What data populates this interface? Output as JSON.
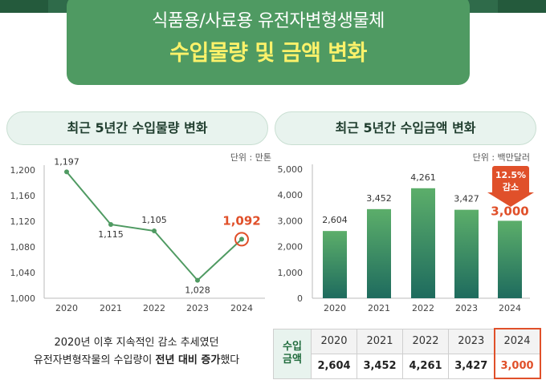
{
  "header": {
    "title_line1": "식품용/사료용 유전자변형생물체",
    "title_line2": "수입물량 및 금액 변화"
  },
  "left_panel": {
    "title": "최근 5년간 수입물량 변화",
    "unit": "단위 : 만톤"
  },
  "right_panel": {
    "title": "최근 5년간 수입금액 변화",
    "unit": "단위 : 백만달러",
    "callout": "12.5% 감소"
  },
  "caption": {
    "line1": "2020년 이후 지속적인 감소 추세였던",
    "line2_prefix": "유전자변형작물의 수입량이 ",
    "line2_bold": "전년 대비 증가",
    "line2_suffix": "했다"
  },
  "table": {
    "row_header": "수입 금액",
    "years": [
      "2020",
      "2021",
      "2022",
      "2023",
      "2024"
    ],
    "values": [
      "2,604",
      "3,452",
      "4,261",
      "3,427",
      "3,000"
    ]
  },
  "colors": {
    "header_bg": "#4f9a62",
    "title_highlight": "#fdf26a",
    "line_color": "#4f9a62",
    "highlight": "#e0502a",
    "bar_top": "#5cae6a",
    "bar_bottom": "#1e6b5e"
  },
  "chart_data": [
    {
      "type": "line",
      "x": [
        "2020",
        "2021",
        "2022",
        "2023",
        "2024"
      ],
      "values": [
        1197,
        1115,
        1105,
        1028,
        1092
      ],
      "labels": [
        "1,197",
        "1,115",
        "1,105",
        "1,028",
        "1,092"
      ],
      "ylim": [
        1000,
        1200
      ],
      "yticks": [
        1000,
        1040,
        1080,
        1120,
        1160,
        1200
      ],
      "ytick_labels": [
        "1,000",
        "1,040",
        "1,080",
        "1,120",
        "1,160",
        "1,200"
      ],
      "grid": false,
      "highlight_index": 4
    },
    {
      "type": "bar",
      "categories": [
        "2020",
        "2021",
        "2022",
        "2023",
        "2024"
      ],
      "values": [
        2604,
        3452,
        4261,
        3427,
        3000
      ],
      "labels": [
        "2,604",
        "3,452",
        "4,261",
        "3,427",
        "3,000"
      ],
      "ylim": [
        0,
        5000
      ],
      "yticks": [
        0,
        1000,
        2000,
        3000,
        4000,
        5000
      ],
      "ytick_labels": [
        "0",
        "1,000",
        "2,000",
        "3,000",
        "4,000",
        "5,000"
      ],
      "grid": false,
      "highlight_index": 4
    }
  ]
}
